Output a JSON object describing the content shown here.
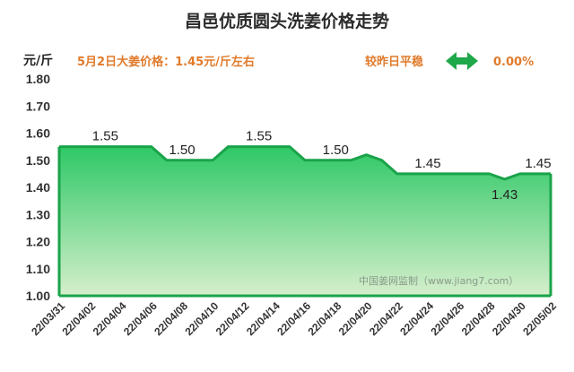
{
  "header": {
    "title": "昌邑优质圆头洗姜价格走势",
    "unit": "元/斤",
    "price_text": "5月2日大姜价格：1.45元/斤左右",
    "trend_text": "较昨日平稳",
    "change_text": "0.00%",
    "trend_icon": "double-arrow-icon"
  },
  "colors": {
    "title": "#2b2b2b",
    "price_text": "#e07b2c",
    "trend_text": "#e07b2c",
    "arrow": "#1fa84a",
    "area_top": "#2ec866",
    "area_bottom": "#d6efcc",
    "line": "#1aa34a"
  },
  "watermark": "中国姜网监制（www.jiang7.com）",
  "chart_data": {
    "type": "area",
    "title": "昌邑优质圆头洗姜价格走势",
    "ylabel": "元/斤",
    "xlabel": "",
    "ylim": [
      1.0,
      1.8
    ],
    "yticks": [
      "1.00",
      "1.10",
      "1.20",
      "1.30",
      "1.40",
      "1.50",
      "1.60",
      "1.70",
      "1.80"
    ],
    "xticks": [
      "22/03/31",
      "22/04/02",
      "22/04/04",
      "22/04/06",
      "22/04/08",
      "22/04/10",
      "22/04/12",
      "22/04/14",
      "22/04/16",
      "22/04/18",
      "22/04/20",
      "22/04/22",
      "22/04/24",
      "22/04/26",
      "22/04/28",
      "22/04/30",
      "22/05/02"
    ],
    "x": [
      "22/03/31",
      "22/04/01",
      "22/04/02",
      "22/04/03",
      "22/04/04",
      "22/04/05",
      "22/04/06",
      "22/04/07",
      "22/04/08",
      "22/04/09",
      "22/04/10",
      "22/04/11",
      "22/04/12",
      "22/04/13",
      "22/04/14",
      "22/04/15",
      "22/04/16",
      "22/04/17",
      "22/04/18",
      "22/04/19",
      "22/04/20",
      "22/04/21",
      "22/04/22",
      "22/04/23",
      "22/04/24",
      "22/04/25",
      "22/04/26",
      "22/04/27",
      "22/04/28",
      "22/04/29",
      "22/04/30",
      "22/05/01",
      "22/05/02"
    ],
    "values": [
      1.55,
      1.55,
      1.55,
      1.55,
      1.55,
      1.55,
      1.55,
      1.5,
      1.5,
      1.5,
      1.5,
      1.55,
      1.55,
      1.55,
      1.55,
      1.55,
      1.5,
      1.5,
      1.5,
      1.5,
      1.52,
      1.5,
      1.45,
      1.45,
      1.45,
      1.45,
      1.45,
      1.45,
      1.45,
      1.43,
      1.45,
      1.45,
      1.45
    ],
    "data_labels": [
      {
        "x": "22/04/03",
        "text": "1.55"
      },
      {
        "x": "22/04/08",
        "text": "1.50"
      },
      {
        "x": "22/04/13",
        "text": "1.55"
      },
      {
        "x": "22/04/18",
        "text": "1.50"
      },
      {
        "x": "22/04/24",
        "text": "1.45"
      },
      {
        "x": "22/04/29",
        "text": "1.43"
      },
      {
        "x": "22/05/02",
        "text": "1.45"
      }
    ],
    "grid": false,
    "legend": "none"
  }
}
